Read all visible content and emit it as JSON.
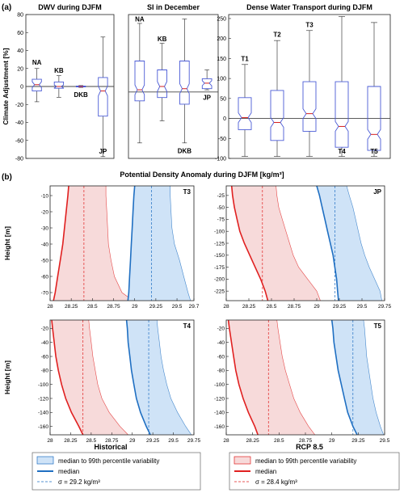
{
  "panel_labels": {
    "a": "(a)",
    "b": "(b)"
  },
  "b_title": "Potential Density Anomaly during DJFM [kg/m³]",
  "legends": {
    "historical": {
      "title": "Historical",
      "band_label": "median to 99th percentile variability",
      "median_label": "median",
      "sigma_label": "σ = 29.2 kg/m³"
    },
    "rcp": {
      "title": "RCP 8.5",
      "band_label": "median to 99th percentile variability",
      "median_label": "median",
      "sigma_label": "σ = 28.4 kg/m³"
    }
  },
  "colors": {
    "box": "#4a5bd6",
    "median": "#d42020",
    "zero": "#444444",
    "hist": "#1f6fc2",
    "hist_fill": "#cfe3f7",
    "rcp": "#e02020",
    "rcp_fill": "#f7dada"
  },
  "chart_data": [
    {
      "id": "dwv",
      "type": "box",
      "title": "DWV during DJFM",
      "ylabel": "Climate Adjustment [%]",
      "ylim": [
        -80,
        80
      ],
      "yticks": [
        -80,
        -60,
        -40,
        -20,
        0,
        20,
        40,
        60,
        80
      ],
      "zero_line": true,
      "boxes": [
        {
          "label": "NA",
          "min": -17,
          "q1": -5,
          "median": 2,
          "q3": 8,
          "max": 20,
          "label_pos": "above",
          "label_value": 27
        },
        {
          "label": "KB",
          "min": -12,
          "q1": -2,
          "median": 0,
          "q3": 5,
          "max": 12,
          "label_pos": "above",
          "label_value": 18
        },
        {
          "label": "DKB",
          "min": -1,
          "q1": -0.5,
          "median": 0,
          "q3": 0.5,
          "max": 1,
          "label_pos": "below",
          "label_value": -9
        },
        {
          "label": "JP",
          "min": -78,
          "q1": -33,
          "median": -5,
          "q3": 10,
          "max": 55,
          "label_pos": "below",
          "label_value": -72
        }
      ]
    },
    {
      "id": "si",
      "type": "box",
      "title": "SI in December",
      "ylabel": "",
      "ylim": [
        -300,
        350
      ],
      "yticks": [],
      "zero_line": true,
      "boxes": [
        {
          "label": "NA",
          "min": -230,
          "q1": -40,
          "median": 10,
          "q3": 140,
          "max": 310,
          "label_pos": "above",
          "label_value": 330
        },
        {
          "label": "KB",
          "min": -130,
          "q1": -25,
          "median": 25,
          "q3": 100,
          "max": 220,
          "label_pos": "above",
          "label_value": 240
        },
        {
          "label": "DKB",
          "min": -230,
          "q1": -55,
          "median": 15,
          "q3": 140,
          "max": 330,
          "label_pos": "below",
          "label_value": -265
        },
        {
          "label": "JP",
          "min": 10,
          "q1": 15,
          "median": 40,
          "q3": 60,
          "max": 100,
          "label_pos": "below",
          "label_value": -25
        }
      ]
    },
    {
      "id": "dwt",
      "type": "box",
      "title": "Dense Water Transport during DJFM",
      "ylabel": "",
      "ylim": [
        -100,
        260
      ],
      "yticks": [
        -100,
        -50,
        0,
        50,
        100,
        150,
        200,
        250
      ],
      "zero_line": true,
      "boxes": [
        {
          "label": "T1",
          "min": -95,
          "q1": -28,
          "median": 2,
          "q3": 52,
          "max": 135,
          "label_pos": "above",
          "label_value": 150
        },
        {
          "label": "T2",
          "min": -95,
          "q1": -55,
          "median": -10,
          "q3": 70,
          "max": 195,
          "label_pos": "above",
          "label_value": 210
        },
        {
          "label": "T3",
          "min": -95,
          "q1": -32,
          "median": 12,
          "q3": 92,
          "max": 220,
          "label_pos": "above",
          "label_value": 235
        },
        {
          "label": "T4",
          "min": -95,
          "q1": -72,
          "median": -20,
          "q3": 92,
          "max": 255,
          "label_pos": "below",
          "label_value": -82
        },
        {
          "label": "T5",
          "min": -95,
          "q1": -80,
          "median": -40,
          "q3": 80,
          "max": 240,
          "label_pos": "below",
          "label_value": -82
        }
      ]
    },
    {
      "id": "t3",
      "type": "line",
      "corner_label": "T3",
      "ylabel": "Height [m]",
      "xlim": [
        28,
        29.7
      ],
      "xticks": [
        28,
        28.25,
        28.5,
        28.75,
        29,
        29.25,
        29.5,
        29.7
      ],
      "ylim": [
        -75,
        -4
      ],
      "yticks": [
        -10,
        -20,
        -30,
        -40,
        -50,
        -60,
        -70
      ],
      "hist_sigma": 29.2,
      "rcp_sigma": 28.4,
      "y": [
        -4,
        -10,
        -20,
        -30,
        -40,
        -50,
        -60,
        -70,
        -75
      ],
      "rcp_median": [
        28.22,
        28.21,
        28.19,
        28.17,
        28.15,
        28.12,
        28.09,
        28.06,
        28.04
      ],
      "rcp_upper": [
        28.66,
        28.66,
        28.67,
        28.68,
        28.69,
        28.72,
        28.76,
        28.85,
        28.98
      ],
      "hist_median": [
        29.0,
        28.99,
        28.98,
        28.97,
        28.96,
        28.95,
        28.94,
        28.93,
        28.92
      ],
      "hist_upper": [
        29.42,
        29.42,
        29.43,
        29.44,
        29.47,
        29.53,
        29.58,
        29.63,
        29.66
      ]
    },
    {
      "id": "jp",
      "type": "line",
      "corner_label": "JP",
      "ylabel": "",
      "xlim": [
        28,
        29.75
      ],
      "xticks": [
        28,
        28.25,
        28.5,
        28.75,
        29,
        29.25,
        29.5,
        29.75
      ],
      "ylim": [
        -245,
        -5
      ],
      "yticks": [
        -25,
        -50,
        -75,
        -100,
        -125,
        -150,
        -175,
        -200,
        -225
      ],
      "hist_sigma": 29.2,
      "rcp_sigma": 28.4,
      "y": [
        -5,
        -25,
        -50,
        -75,
        -100,
        -125,
        -150,
        -175,
        -200,
        -225,
        -245
      ],
      "rcp_median": [
        28.06,
        28.07,
        28.09,
        28.12,
        28.15,
        28.2,
        28.26,
        28.32,
        28.38,
        28.43,
        28.46
      ],
      "rcp_upper": [
        28.55,
        28.56,
        28.58,
        28.62,
        28.66,
        28.7,
        28.74,
        28.8,
        28.9,
        29.0,
        29.04
      ],
      "hist_median": [
        29.0,
        29.03,
        29.06,
        29.09,
        29.12,
        29.15,
        29.18,
        29.2,
        29.22,
        29.23,
        29.24
      ],
      "hist_upper": [
        29.33,
        29.36,
        29.4,
        29.43,
        29.46,
        29.49,
        29.53,
        29.58,
        29.64,
        29.7,
        29.72
      ]
    },
    {
      "id": "t4",
      "type": "line",
      "corner_label": "T4",
      "ylabel": "Height [m]",
      "xlim": [
        28,
        29.75
      ],
      "xticks": [
        28,
        28.25,
        28.5,
        28.75,
        29,
        29.25,
        29.5,
        29.75
      ],
      "ylim": [
        -172,
        -8
      ],
      "yticks": [
        -20,
        -40,
        -60,
        -80,
        -100,
        -120,
        -140,
        -160
      ],
      "hist_sigma": 29.2,
      "rcp_sigma": 28.4,
      "y": [
        -8,
        -20,
        -40,
        -60,
        -80,
        -100,
        -120,
        -140,
        -160,
        -172
      ],
      "rcp_median": [
        28.02,
        28.03,
        28.05,
        28.07,
        28.1,
        28.14,
        28.19,
        28.26,
        28.35,
        28.4
      ],
      "rcp_upper": [
        28.47,
        28.48,
        28.5,
        28.52,
        28.55,
        28.58,
        28.63,
        28.72,
        28.85,
        28.95
      ],
      "hist_median": [
        28.93,
        28.94,
        28.95,
        28.97,
        28.99,
        29.02,
        29.05,
        29.1,
        29.17,
        29.22
      ],
      "hist_upper": [
        29.3,
        29.31,
        29.33,
        29.35,
        29.38,
        29.42,
        29.47,
        29.55,
        29.65,
        29.72
      ]
    },
    {
      "id": "t5",
      "type": "line",
      "corner_label": "T5",
      "ylabel": "",
      "xlim": [
        28,
        29.5
      ],
      "xticks": [
        28,
        28.25,
        28.5,
        28.75,
        29,
        29.25,
        29.5
      ],
      "ylim": [
        -172,
        -8
      ],
      "yticks": [
        -20,
        -40,
        -60,
        -80,
        -100,
        -120,
        -140,
        -160
      ],
      "hist_sigma": 29.2,
      "rcp_sigma": 28.4,
      "y": [
        -8,
        -20,
        -40,
        -60,
        -80,
        -100,
        -120,
        -140,
        -160,
        -172
      ],
      "rcp_median": [
        28.02,
        28.03,
        28.05,
        28.07,
        28.09,
        28.12,
        28.16,
        28.21,
        28.27,
        28.3
      ],
      "rcp_upper": [
        28.48,
        28.49,
        28.51,
        28.53,
        28.56,
        28.6,
        28.64,
        28.7,
        28.78,
        28.84
      ],
      "hist_median": [
        29.0,
        29.01,
        29.02,
        29.04,
        29.06,
        29.09,
        29.12,
        29.15,
        29.2,
        29.24
      ],
      "hist_upper": [
        29.3,
        29.31,
        29.32,
        29.33,
        29.35,
        29.37,
        29.39,
        29.42,
        29.46,
        29.49
      ]
    }
  ]
}
